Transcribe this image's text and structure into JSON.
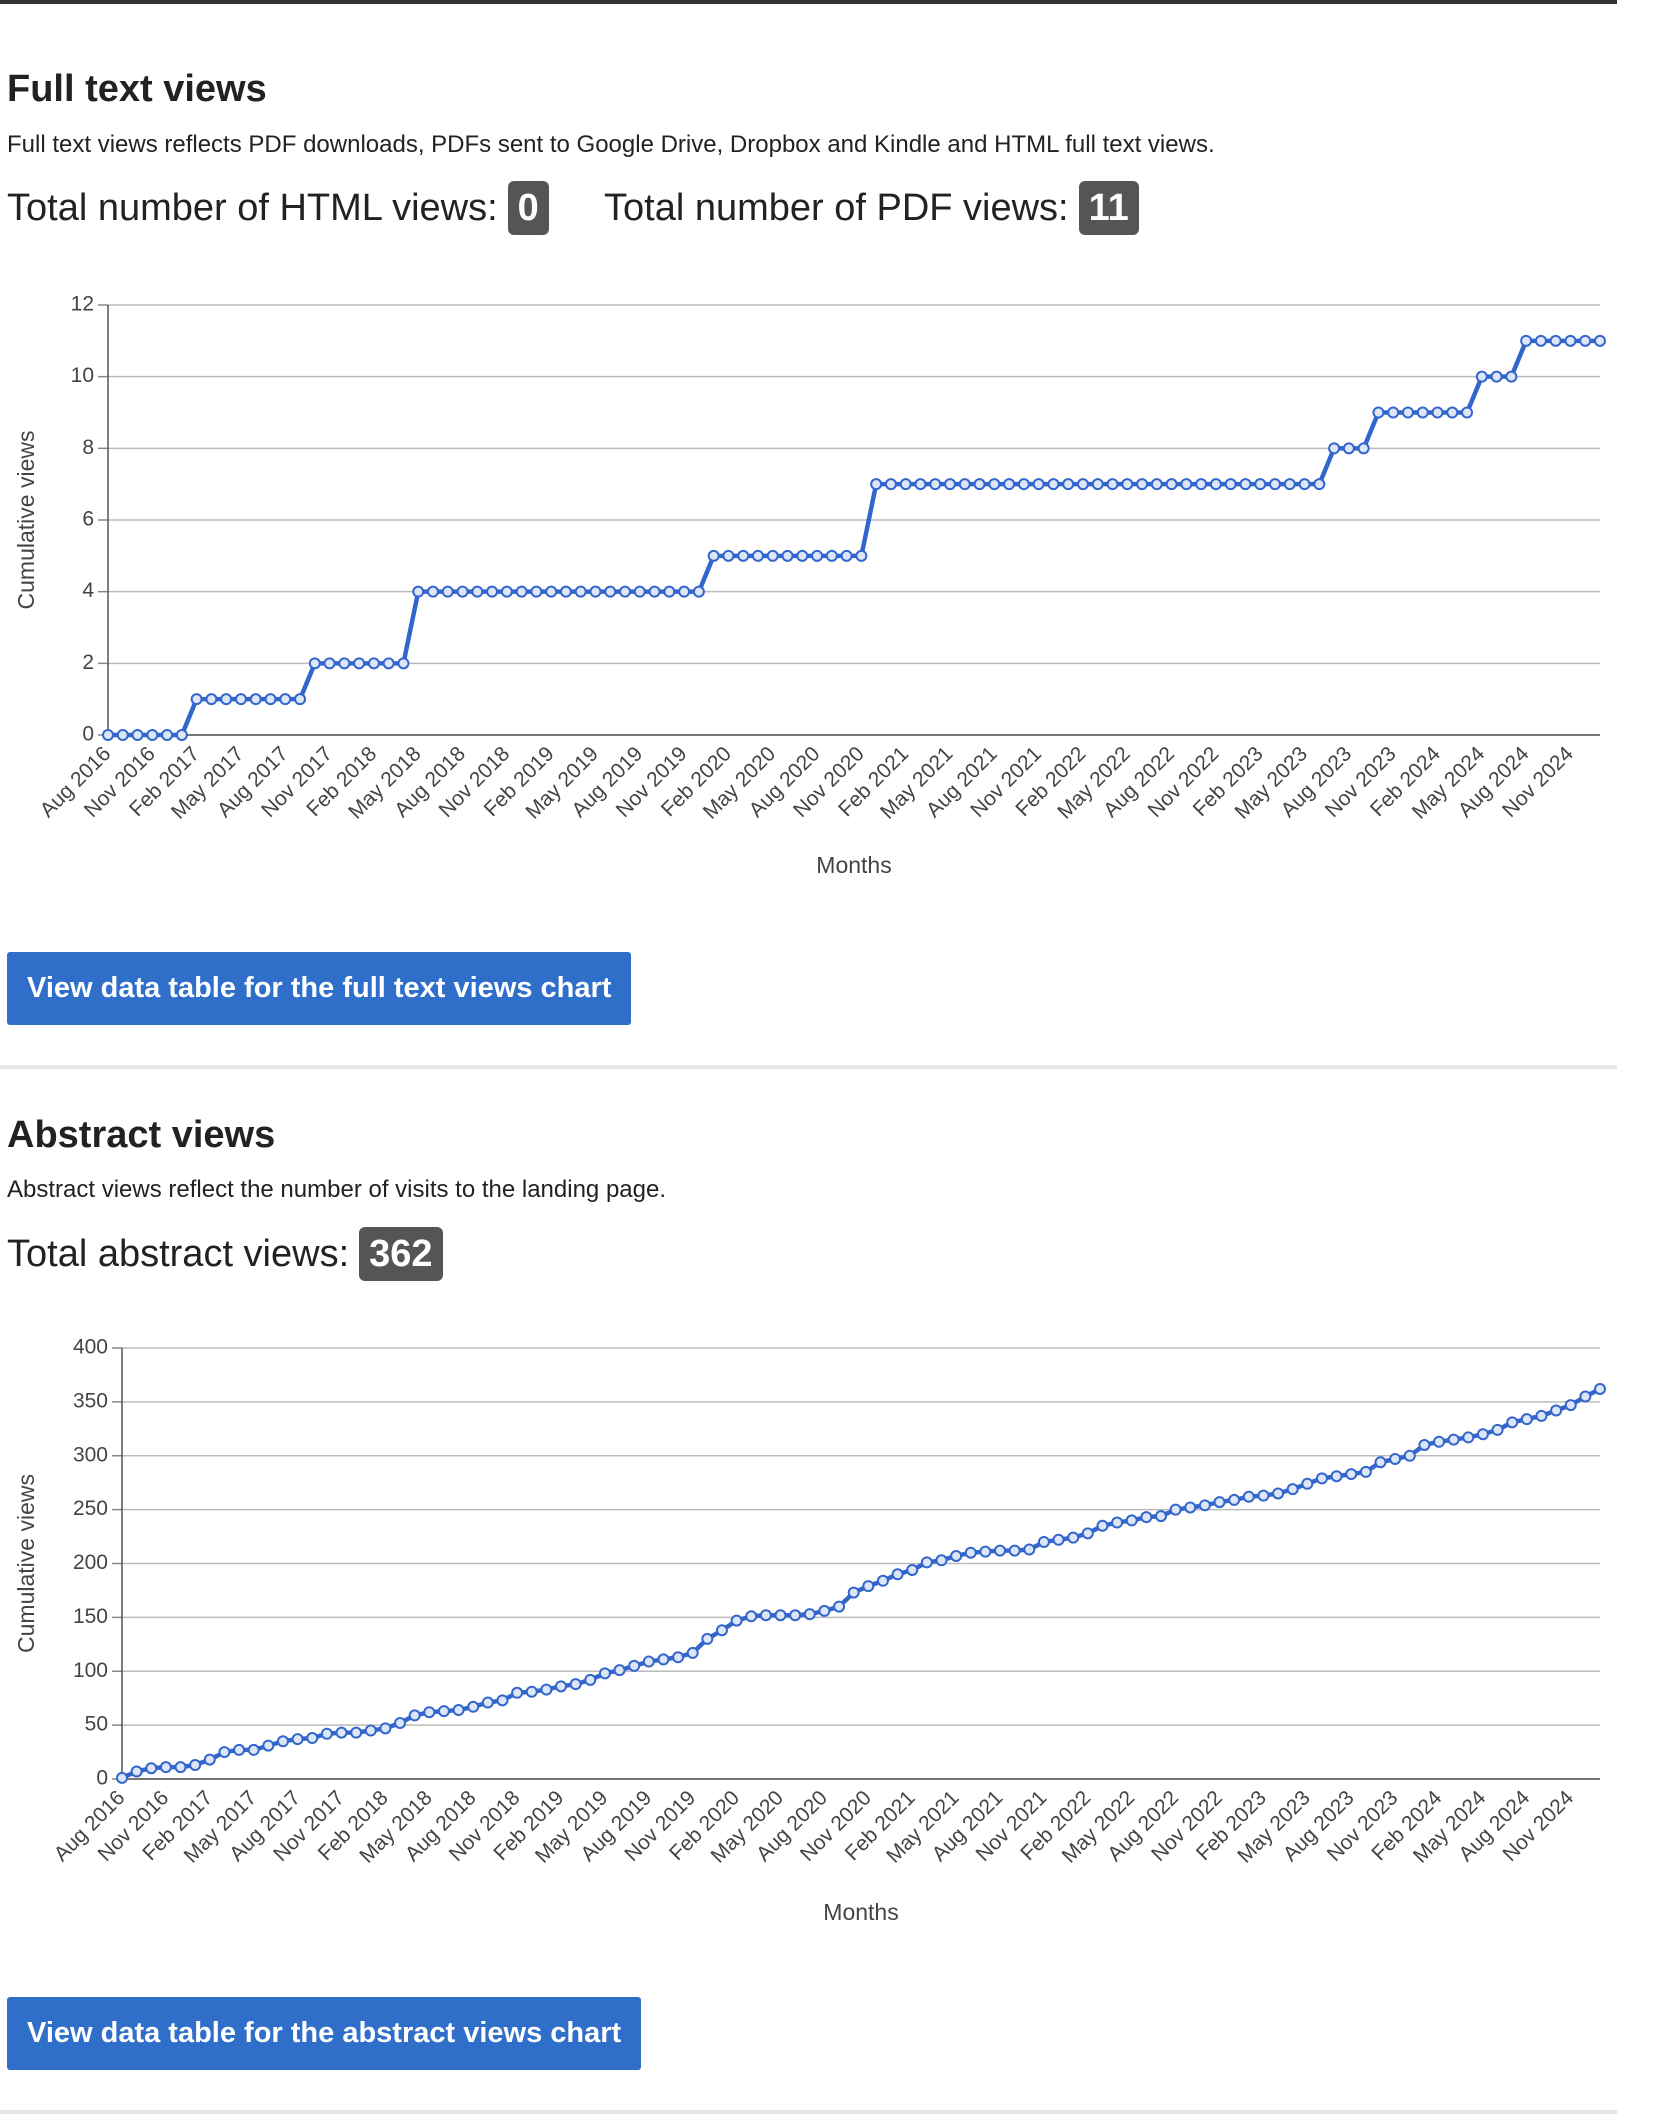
{
  "sections": [
    {
      "title": "Full text views",
      "description": "Full text views reflects PDF downloads, PDFs sent to Google Drive, Dropbox and Kindle and HTML full text views.",
      "totals": [
        {
          "label": "Total number of HTML views:",
          "value": 0
        },
        {
          "label": "Total number of PDF views:",
          "value": 11
        }
      ],
      "button": "View data table for the full text views chart"
    },
    {
      "title": "Abstract views",
      "description": "Abstract views reflect the number of visits to the landing page.",
      "totals": [
        {
          "label": "Total abstract views:",
          "value": 362
        }
      ],
      "button": "View data table for the abstract views chart"
    }
  ],
  "chart_data": [
    {
      "type": "line",
      "x_label": "Months",
      "y_label": "Cumulative views",
      "color": "#3366cc",
      "grid": true,
      "ylim": [
        0,
        12
      ],
      "yticks": [
        0,
        2,
        4,
        6,
        8,
        10,
        12
      ],
      "categories": [
        "Aug 2016",
        null,
        null,
        "Nov 2016",
        null,
        null,
        "Feb 2017",
        null,
        null,
        "May 2017",
        null,
        null,
        "Aug 2017",
        null,
        null,
        "Nov 2017",
        null,
        null,
        "Feb 2018",
        null,
        null,
        "May 2018",
        null,
        null,
        "Aug 2018",
        null,
        null,
        "Nov 2018",
        null,
        null,
        "Feb 2019",
        null,
        null,
        "May 2019",
        null,
        null,
        "Aug 2019",
        null,
        null,
        "Nov 2019",
        null,
        null,
        "Feb 2020",
        null,
        null,
        "May 2020",
        null,
        null,
        "Aug 2020",
        null,
        null,
        "Nov 2020",
        null,
        null,
        "Feb 2021",
        null,
        null,
        "May 2021",
        null,
        null,
        "Aug 2021",
        null,
        null,
        "Nov 2021",
        null,
        null,
        "Feb 2022",
        null,
        null,
        "May 2022",
        null,
        null,
        "Aug 2022",
        null,
        null,
        "Nov 2022",
        null,
        null,
        "Feb 2023",
        null,
        null,
        "May 2023",
        null,
        null,
        "Aug 2023",
        null,
        null,
        "Nov 2023",
        null,
        null,
        "Feb 2024",
        null,
        null,
        "May 2024",
        null,
        null,
        "Aug 2024",
        null,
        null,
        "Nov 2024",
        null,
        null
      ],
      "values": [
        0,
        0,
        0,
        0,
        0,
        0,
        1,
        1,
        1,
        1,
        1,
        1,
        1,
        1,
        2,
        2,
        2,
        2,
        2,
        2,
        2,
        4,
        4,
        4,
        4,
        4,
        4,
        4,
        4,
        4,
        4,
        4,
        4,
        4,
        4,
        4,
        4,
        4,
        4,
        4,
        4,
        5,
        5,
        5,
        5,
        5,
        5,
        5,
        5,
        5,
        5,
        5,
        7,
        7,
        7,
        7,
        7,
        7,
        7,
        7,
        7,
        7,
        7,
        7,
        7,
        7,
        7,
        7,
        7,
        7,
        7,
        7,
        7,
        7,
        7,
        7,
        7,
        7,
        7,
        7,
        7,
        7,
        7,
        8,
        8,
        8,
        9,
        9,
        9,
        9,
        9,
        9,
        9,
        10,
        10,
        10,
        11,
        11,
        11,
        11,
        11,
        11
      ]
    },
    {
      "type": "line",
      "x_label": "Months",
      "y_label": "Cumulative views",
      "color": "#3366cc",
      "grid": true,
      "ylim": [
        0,
        400
      ],
      "yticks": [
        0,
        50,
        100,
        150,
        200,
        250,
        300,
        350,
        400
      ],
      "categories": [
        "Aug 2016",
        null,
        null,
        "Nov 2016",
        null,
        null,
        "Feb 2017",
        null,
        null,
        "May 2017",
        null,
        null,
        "Aug 2017",
        null,
        null,
        "Nov 2017",
        null,
        null,
        "Feb 2018",
        null,
        null,
        "May 2018",
        null,
        null,
        "Aug 2018",
        null,
        null,
        "Nov 2018",
        null,
        null,
        "Feb 2019",
        null,
        null,
        "May 2019",
        null,
        null,
        "Aug 2019",
        null,
        null,
        "Nov 2019",
        null,
        null,
        "Feb 2020",
        null,
        null,
        "May 2020",
        null,
        null,
        "Aug 2020",
        null,
        null,
        "Nov 2020",
        null,
        null,
        "Feb 2021",
        null,
        null,
        "May 2021",
        null,
        null,
        "Aug 2021",
        null,
        null,
        "Nov 2021",
        null,
        null,
        "Feb 2022",
        null,
        null,
        "May 2022",
        null,
        null,
        "Aug 2022",
        null,
        null,
        "Nov 2022",
        null,
        null,
        "Feb 2023",
        null,
        null,
        "May 2023",
        null,
        null,
        "Aug 2023",
        null,
        null,
        "Nov 2023",
        null,
        null,
        "Feb 2024",
        null,
        null,
        "May 2024",
        null,
        null,
        "Aug 2024",
        null,
        null,
        "Nov 2024",
        null,
        null
      ],
      "values": [
        1,
        7,
        10,
        11,
        11,
        13,
        18,
        25,
        27,
        27,
        31,
        35,
        37,
        38,
        42,
        43,
        43,
        45,
        47,
        52,
        59,
        62,
        63,
        64,
        67,
        71,
        73,
        80,
        81,
        83,
        86,
        88,
        92,
        98,
        101,
        105,
        109,
        111,
        113,
        117,
        130,
        138,
        147,
        151,
        152,
        152,
        152,
        153,
        156,
        160,
        173,
        179,
        184,
        190,
        194,
        201,
        203,
        207,
        210,
        211,
        212,
        212,
        213,
        220,
        222,
        224,
        228,
        235,
        238,
        240,
        243,
        244,
        250,
        252,
        254,
        257,
        259,
        262,
        263,
        265,
        269,
        274,
        279,
        281,
        283,
        285,
        294,
        297,
        300,
        310,
        313,
        315,
        317,
        320,
        324,
        331,
        334,
        337,
        342,
        347,
        355,
        362
      ]
    }
  ]
}
